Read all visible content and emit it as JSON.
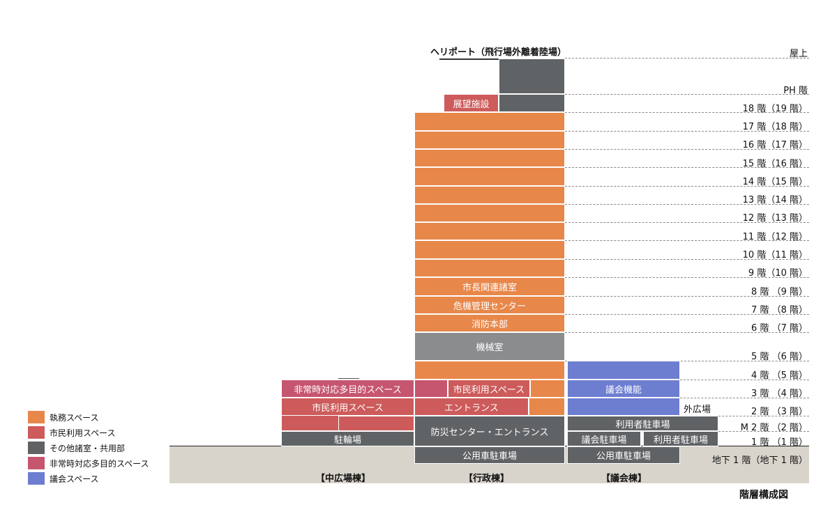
{
  "title": "階層構成図",
  "heliport": "ヘリポート（飛行場外離着陸場）",
  "outdoor_plaza": "外広場",
  "floors": {
    "roof": "屋上",
    "ph": "PH 階",
    "f18": "18 階（19 階）",
    "f17": "17 階（18 階）",
    "f16": "16 階（17 階）",
    "f15": "15 階（16 階）",
    "f14": "14 階（15 階）",
    "f13": "13 階（14 階）",
    "f12": "12 階（13 階）",
    "f11": "11 階（12 階）",
    "f10": "10 階（11 階）",
    "f9": "9 階（10 階）",
    "f8": "8 階 （9 階）",
    "f7": "7 階 （8 階）",
    "f6": "6 階 （7 階）",
    "f5": "5 階 （6 階）",
    "f4": "4 階 （5 階）",
    "f3": "3 階 （4 階）",
    "f2": "2 階 （3 階）",
    "m2": "M 2 階 （2 階）",
    "f1": "1 階 （1 階）",
    "b1": "地下 1 階（地下 1 階）"
  },
  "buildings": {
    "middle_plaza": "【中広場棟】",
    "administrative": "【行政棟】",
    "assembly": "【議会棟】"
  },
  "rooms": {
    "observation": "展望施設",
    "mayor": "市長関連諸室",
    "crisis": "危機管理センター",
    "fire": "消防本部",
    "machine": "機械室",
    "civic_use_admin": "市民利用スペース",
    "entrance_admin": "エントランス",
    "disaster_center": "防災センター・エントランス",
    "public_parking_admin": "公用車駐車場",
    "emergency_space": "非常時対応多目的スペース",
    "civic_use_plaza": "市民利用スペース",
    "bicycle": "駐輪場",
    "assembly_function": "議会機能",
    "user_parking_m2": "利用者駐車場",
    "assembly_parking": "議会駐車場",
    "user_parking_1f": "利用者駐車場",
    "public_parking_assembly": "公用車駐車場"
  },
  "legend": [
    {
      "label": "執務スペース",
      "color": "#e8874a"
    },
    {
      "label": "市民利用スペース",
      "color": "#cd5b5b"
    },
    {
      "label": "その他諸室・共用部",
      "color": "#606366"
    },
    {
      "label": "非常時対応多目的スペース",
      "color": "#c65570"
    },
    {
      "label": "議会スペース",
      "color": "#6d7dd0"
    }
  ]
}
